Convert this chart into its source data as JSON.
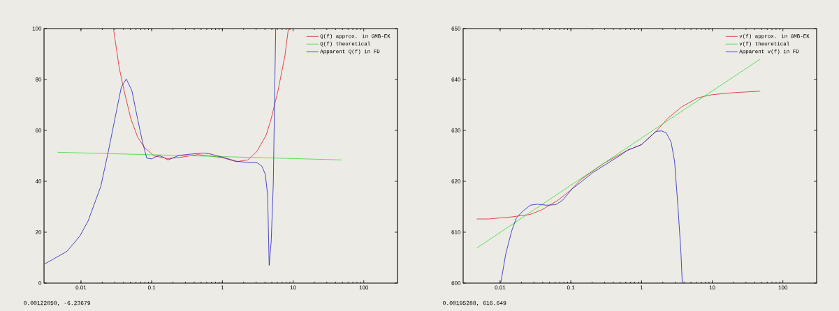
{
  "chart_data": [
    {
      "type": "line",
      "log": "x",
      "legend": "top right",
      "xlim": [
        0.003,
        300
      ],
      "ylim": [
        0,
        100
      ],
      "xticks": [
        0.01,
        0.1,
        1,
        10,
        100
      ],
      "yticks": [
        0,
        20,
        40,
        60,
        80,
        100
      ],
      "annotations": [
        "0.00122050, -6.23679"
      ],
      "series": [
        {
          "name": "Q(f) approx. in GMB-EK",
          "color": "#e02020",
          "x": [
            0.0288,
            0.0347,
            0.0407,
            0.0507,
            0.0635,
            0.0794,
            0.108,
            0.17,
            0.267,
            0.453,
            1,
            1.57,
            2.29,
            3.09,
            4.17,
            4.9,
            6.12,
            7.67,
            8.59
          ],
          "values": [
            100,
            84.7,
            75.6,
            64.6,
            57.3,
            53.2,
            50,
            48.9,
            49.5,
            50.5,
            49.3,
            47.7,
            48.4,
            51.8,
            58.2,
            64.6,
            75.6,
            89.3,
            100
          ]
        },
        {
          "name": "Q(f) theoretical",
          "color": "#33dd33",
          "x": [
            0.00468,
            1,
            49
          ],
          "values": [
            51.4,
            49.7,
            48.4
          ]
        },
        {
          "name": "Apparent Q(f) in FD",
          "color": "#2020c0",
          "x": [
            0.00306,
            0.00635,
            0.00964,
            0.0126,
            0.0191,
            0.024,
            0.0302,
            0.0372,
            0.0437,
            0.0525,
            0.0631,
            0.0741,
            0.0851,
            0.1,
            0.126,
            0.145,
            0.17,
            0.245,
            0.363,
            0.525,
            0.635,
            1,
            1.57,
            2.29,
            3.09,
            3.63,
            4.05,
            4.37,
            4.59,
            4.9,
            5.25,
            5.5,
            5.68
          ],
          "values": [
            7.5,
            12.5,
            18.5,
            24.4,
            38.1,
            50.9,
            64.6,
            77,
            80.2,
            75.6,
            64.6,
            55.5,
            49.1,
            48.8,
            50.2,
            49.5,
            48.4,
            50.2,
            50.7,
            51.1,
            50.9,
            49.5,
            47.9,
            47.4,
            47.3,
            45.9,
            42.7,
            34.5,
            7,
            16.2,
            39,
            75.6,
            100
          ]
        }
      ]
    },
    {
      "type": "line",
      "log": "x",
      "legend": "top right",
      "xlim": [
        0.003,
        300
      ],
      "ylim": [
        600,
        650
      ],
      "xticks": [
        0.01,
        0.1,
        1,
        10,
        100
      ],
      "yticks": [
        600,
        610,
        620,
        630,
        640,
        650
      ],
      "annotations": [
        "0.00195288,  616.649"
      ],
      "series": [
        {
          "name": "v(f) approx. in GMB-EK",
          "color": "#e02020",
          "x": [
            0.00468,
            0.00692,
            0.0145,
            0.0267,
            0.0389,
            0.0661,
            0.0964,
            0.141,
            0.299,
            0.635,
            1,
            1.66,
            2.33,
            3.68,
            6.25,
            9.77,
            19.5,
            47.6
          ],
          "values": [
            612.6,
            612.6,
            613,
            613.5,
            614.4,
            616.3,
            618.1,
            620.4,
            623.6,
            626.1,
            627.2,
            630,
            632.3,
            634.6,
            636.4,
            637,
            637.4,
            637.7
          ]
        },
        {
          "name": "v(f) theoretical",
          "color": "#33dd33",
          "x": [
            0.00468,
            1,
            47.6
          ],
          "values": [
            606.9,
            628.5,
            644
          ]
        },
        {
          "name": "Apparent v(f) in FD",
          "color": "#2020c0",
          "x": [
            0.0102,
            0.012,
            0.0146,
            0.017,
            0.0204,
            0.0267,
            0.0335,
            0.0453,
            0.0612,
            0.0767,
            0.104,
            0.141,
            0.204,
            0.513,
            0.635,
            1,
            1.6,
            1.93,
            2.24,
            2.62,
            2.93,
            3.28,
            3.62,
            3.77
          ],
          "values": [
            600,
            605.7,
            610.3,
            612.8,
            614,
            615.3,
            615.5,
            615.3,
            615.4,
            616.3,
            618.5,
            619.9,
            621.7,
            625.2,
            626.1,
            627.2,
            629.8,
            629.9,
            629.5,
            627.7,
            624,
            614.9,
            605.7,
            600
          ]
        }
      ]
    }
  ]
}
